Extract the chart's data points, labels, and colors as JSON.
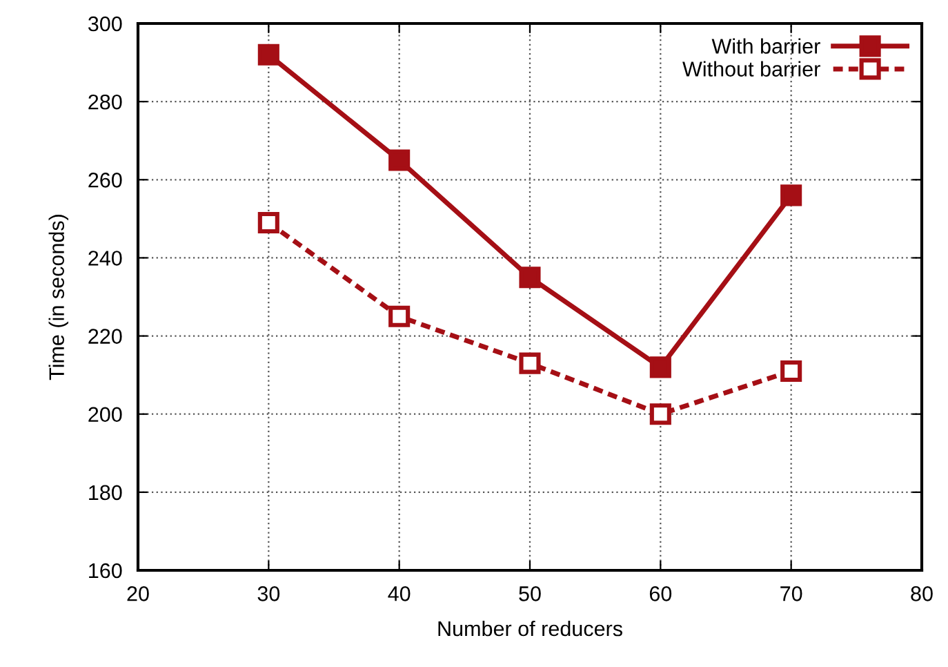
{
  "chart_data": {
    "type": "line",
    "xlabel": "Number of reducers",
    "ylabel": "Time (in seconds)",
    "x": [
      30,
      40,
      50,
      60,
      70
    ],
    "series": [
      {
        "name": "With barrier",
        "color": "#a50f15",
        "values": [
          292,
          265,
          235,
          212,
          256
        ],
        "marker": "square",
        "line_style": "solid"
      },
      {
        "name": "Without barrier",
        "color": "#a50f15",
        "values": [
          249,
          225,
          213,
          200,
          211
        ],
        "marker": "square-open",
        "line_style": "dashed"
      }
    ],
    "xlim": [
      20,
      80
    ],
    "xticks": [
      20,
      30,
      40,
      50,
      60,
      70,
      80
    ],
    "ylim": [
      160,
      300
    ],
    "yticks": [
      160,
      180,
      200,
      220,
      240,
      260,
      280,
      300
    ],
    "grid": true,
    "legend": "top right"
  }
}
